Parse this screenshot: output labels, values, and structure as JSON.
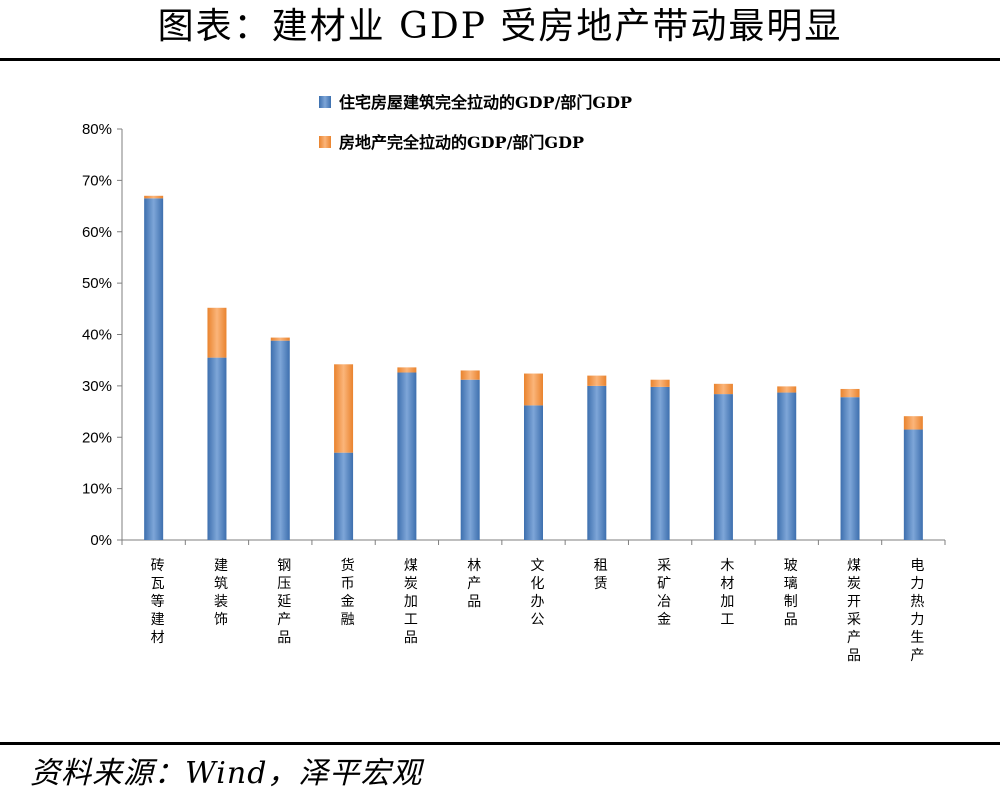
{
  "title": "图表：建材业 GDP 受房地产带动最明显",
  "source": "资料来源：Wind，泽平宏观",
  "colors": {
    "series1": "#4f81bd",
    "series2": "#f79646"
  },
  "chart_data": {
    "type": "bar",
    "stacked": true,
    "title": "",
    "xlabel": "",
    "ylabel": "",
    "ylim": [
      0,
      80
    ],
    "yticks": [
      "0%",
      "10%",
      "20%",
      "30%",
      "40%",
      "50%",
      "60%",
      "70%",
      "80%"
    ],
    "legend_position": "top",
    "grid": false,
    "categories": [
      "砖瓦等建材",
      "建筑装饰",
      "钢压延产品",
      "货币金融",
      "煤炭加工品",
      "林产品",
      "文化办公",
      "租赁",
      "采矿冶金",
      "木材加工",
      "玻璃制品",
      "煤炭开采产品",
      "电力热力生产"
    ],
    "series": [
      {
        "name": "住宅房屋建筑完全拉动的GDP/部门GDP",
        "color": "#4f81bd",
        "values": [
          66.5,
          35.5,
          38.8,
          17.0,
          32.6,
          31.2,
          26.2,
          30.0,
          29.8,
          28.4,
          28.7,
          27.8,
          21.5
        ]
      },
      {
        "name": "房地产完全拉动的GDP/部门GDP",
        "color": "#f79646",
        "values": [
          0.5,
          9.7,
          0.6,
          17.2,
          1.0,
          1.8,
          6.2,
          2.0,
          1.4,
          2.0,
          1.2,
          1.6,
          2.6
        ]
      }
    ]
  }
}
